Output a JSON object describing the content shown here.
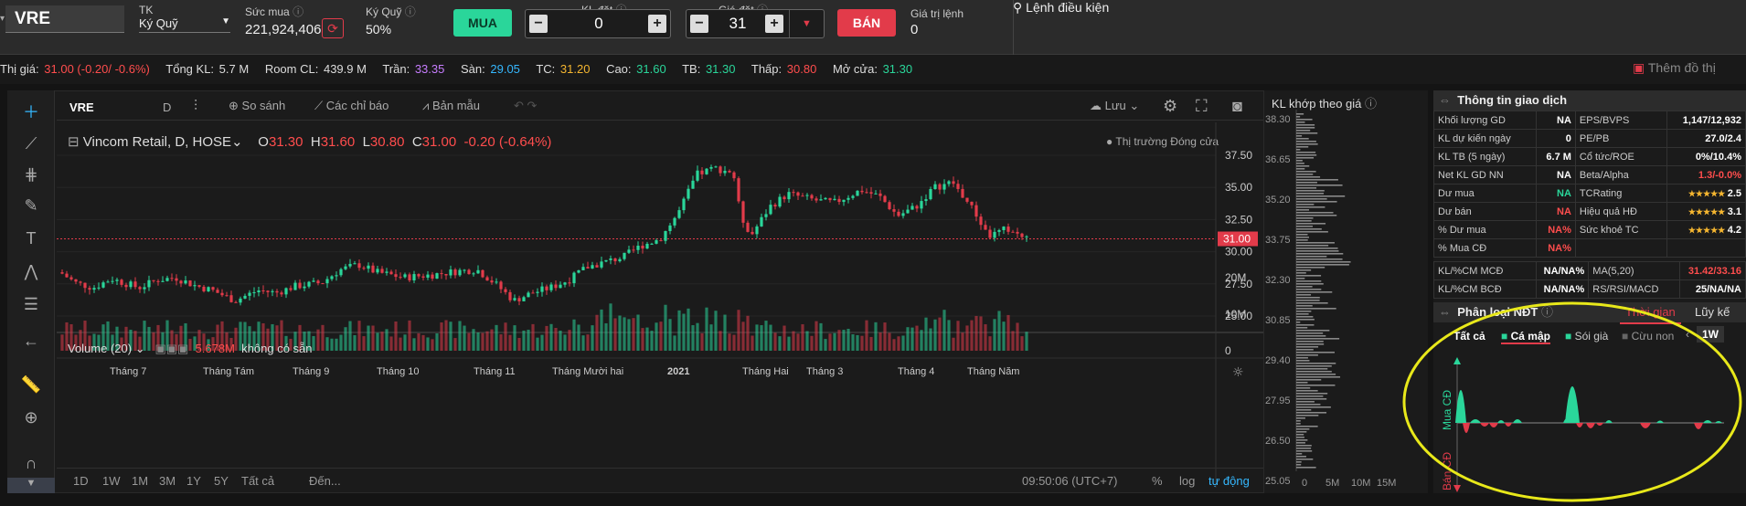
{
  "top": {
    "symbol": "VRE",
    "account_label": "TK",
    "account_value": "Ký Quỹ",
    "buying_power_label": "Sức mua",
    "buying_power_value": "221,924,406",
    "margin_label": "Ký Quỹ",
    "margin_value": "50%",
    "buy_label": "MUA",
    "qty_label": "KL đặt",
    "qty_value": "0",
    "price_label": "Giá đặt",
    "price_value": "31",
    "sell_label": "BÁN",
    "order_value_label": "Giá trị lệnh",
    "order_value": "0",
    "conditional_order": "Lệnh điều kiện"
  },
  "ticker": {
    "price_label": "Thị giá:",
    "price_value": "31.00 (-0.20/ -0.6%)",
    "total_vol_label": "Tổng KL:",
    "total_vol": "5.7 M",
    "room_label": "Room CL:",
    "room": "439.9 M",
    "ceil_label": "Trần:",
    "ceil": "33.35",
    "floor_label": "Sàn:",
    "floor": "29.05",
    "ref_label": "TC:",
    "ref": "31.20",
    "high_label": "Cao:",
    "high": "31.60",
    "avg_label": "TB:",
    "avg": "31.30",
    "low_label": "Thấp:",
    "low": "30.80",
    "open_label": "Mở cửa:",
    "open": "31.30",
    "more_label": "Thêm đồ thị"
  },
  "chart": {
    "symbol": "VRE",
    "interval": "D",
    "compare": "So sánh",
    "indicators": "Các chỉ báo",
    "templates": "Bản mẫu",
    "save": "Lưu",
    "legend_name": "Vincom Retail, D, HOSE",
    "o_label": "O",
    "o": "31.30",
    "h_label": "H",
    "h": "31.60",
    "l_label": "L",
    "l": "30.80",
    "c_label": "C",
    "c": "31.00",
    "chg": "-0.20 (-0.64%)",
    "market_status": "Thị trường Đóng cửa",
    "price_ticks": [
      "37.50",
      "35.00",
      "32.50",
      "30.00",
      "27.50",
      "25.00"
    ],
    "last_price": "31.00",
    "volume_label": "Volume (20)",
    "volume_value": "5.678M",
    "volume_na": "không có sẵn",
    "vol_ticks": [
      "20M",
      "10M",
      "0"
    ],
    "months": [
      "Tháng 7",
      "Tháng Tám",
      "Tháng 9",
      "Tháng 10",
      "Tháng 11",
      "Tháng Mười hai",
      "2021",
      "Tháng Hai",
      "Tháng 3",
      "Tháng 4",
      "Tháng Năm"
    ],
    "ranges": [
      "1D",
      "1W",
      "1M",
      "3M",
      "1Y",
      "5Y",
      "Tất cả"
    ],
    "goto": "Đến...",
    "time": "09:50:06 (UTC+7)",
    "pct": "%",
    "log": "log",
    "auto": "tự động"
  },
  "kl": {
    "title": "KL khớp theo giá",
    "price_ticks": [
      "38.30",
      "36.65",
      "35.20",
      "33.75",
      "32.30",
      "30.85",
      "29.40",
      "27.95",
      "26.50",
      "25.05"
    ],
    "vol_ticks": [
      "0",
      "5M",
      "10M",
      "15M"
    ]
  },
  "info": {
    "title": "Thông tin giao dịch",
    "rows": [
      {
        "l1": "Khối lượng GD",
        "v1": "NA",
        "l2": "EPS/BVPS",
        "v2": "1,147/12,932"
      },
      {
        "l1": "KL dự kiến ngày",
        "v1": "0",
        "l2": "PE/PB",
        "v2": "27.0/2.4"
      },
      {
        "l1": "KL TB (5 ngày)",
        "v1": "6.7 M",
        "l2": "Cổ tức/ROE",
        "v2": "0%/10.4%"
      },
      {
        "l1": "Net KL GD NN",
        "v1": "NA",
        "l2": "Beta/Alpha",
        "v2a": "1.3",
        "v2b": "/-0.0%"
      },
      {
        "l1": "Dư mua",
        "v1": "NA",
        "l2": "TCRating",
        "v2": "2.5"
      },
      {
        "l1": "Dư bán",
        "v1": "NA",
        "l2": "Hiệu quả HĐ",
        "v2": "3.1"
      },
      {
        "l1": "% Dư mua",
        "v1": "NA%",
        "l2": "Sức khoẻ TC",
        "v2": "4.2"
      },
      {
        "l1": "% Mua CĐ",
        "v1": "NA%",
        "l2": "",
        "v2": ""
      }
    ],
    "rows2": [
      {
        "l1": "KL/%CM MCĐ",
        "v1": "NA/NA%",
        "l2": "MA(5,20)",
        "v2": "31.42/33.16"
      },
      {
        "l1": "KL/%CM BCĐ",
        "v1": "NA/NA%",
        "l2": "RS/RSI/MACD",
        "v2": "25/NA/NA"
      }
    ],
    "stars": "★★★★★"
  },
  "ndt": {
    "title": "Phân loại NĐT",
    "tab_time": "Thời gian",
    "tab_acc": "Lũy kế",
    "filters": [
      "Tất cả",
      "Cá mập",
      "Sói già",
      "Cừu non"
    ],
    "period": "1W",
    "buy_label": "Mua CĐ",
    "sell_label": "Bán CĐ"
  },
  "colors": {
    "up": "#2ad69a",
    "down": "#e23b4a",
    "annotation": "#e8e81a"
  }
}
